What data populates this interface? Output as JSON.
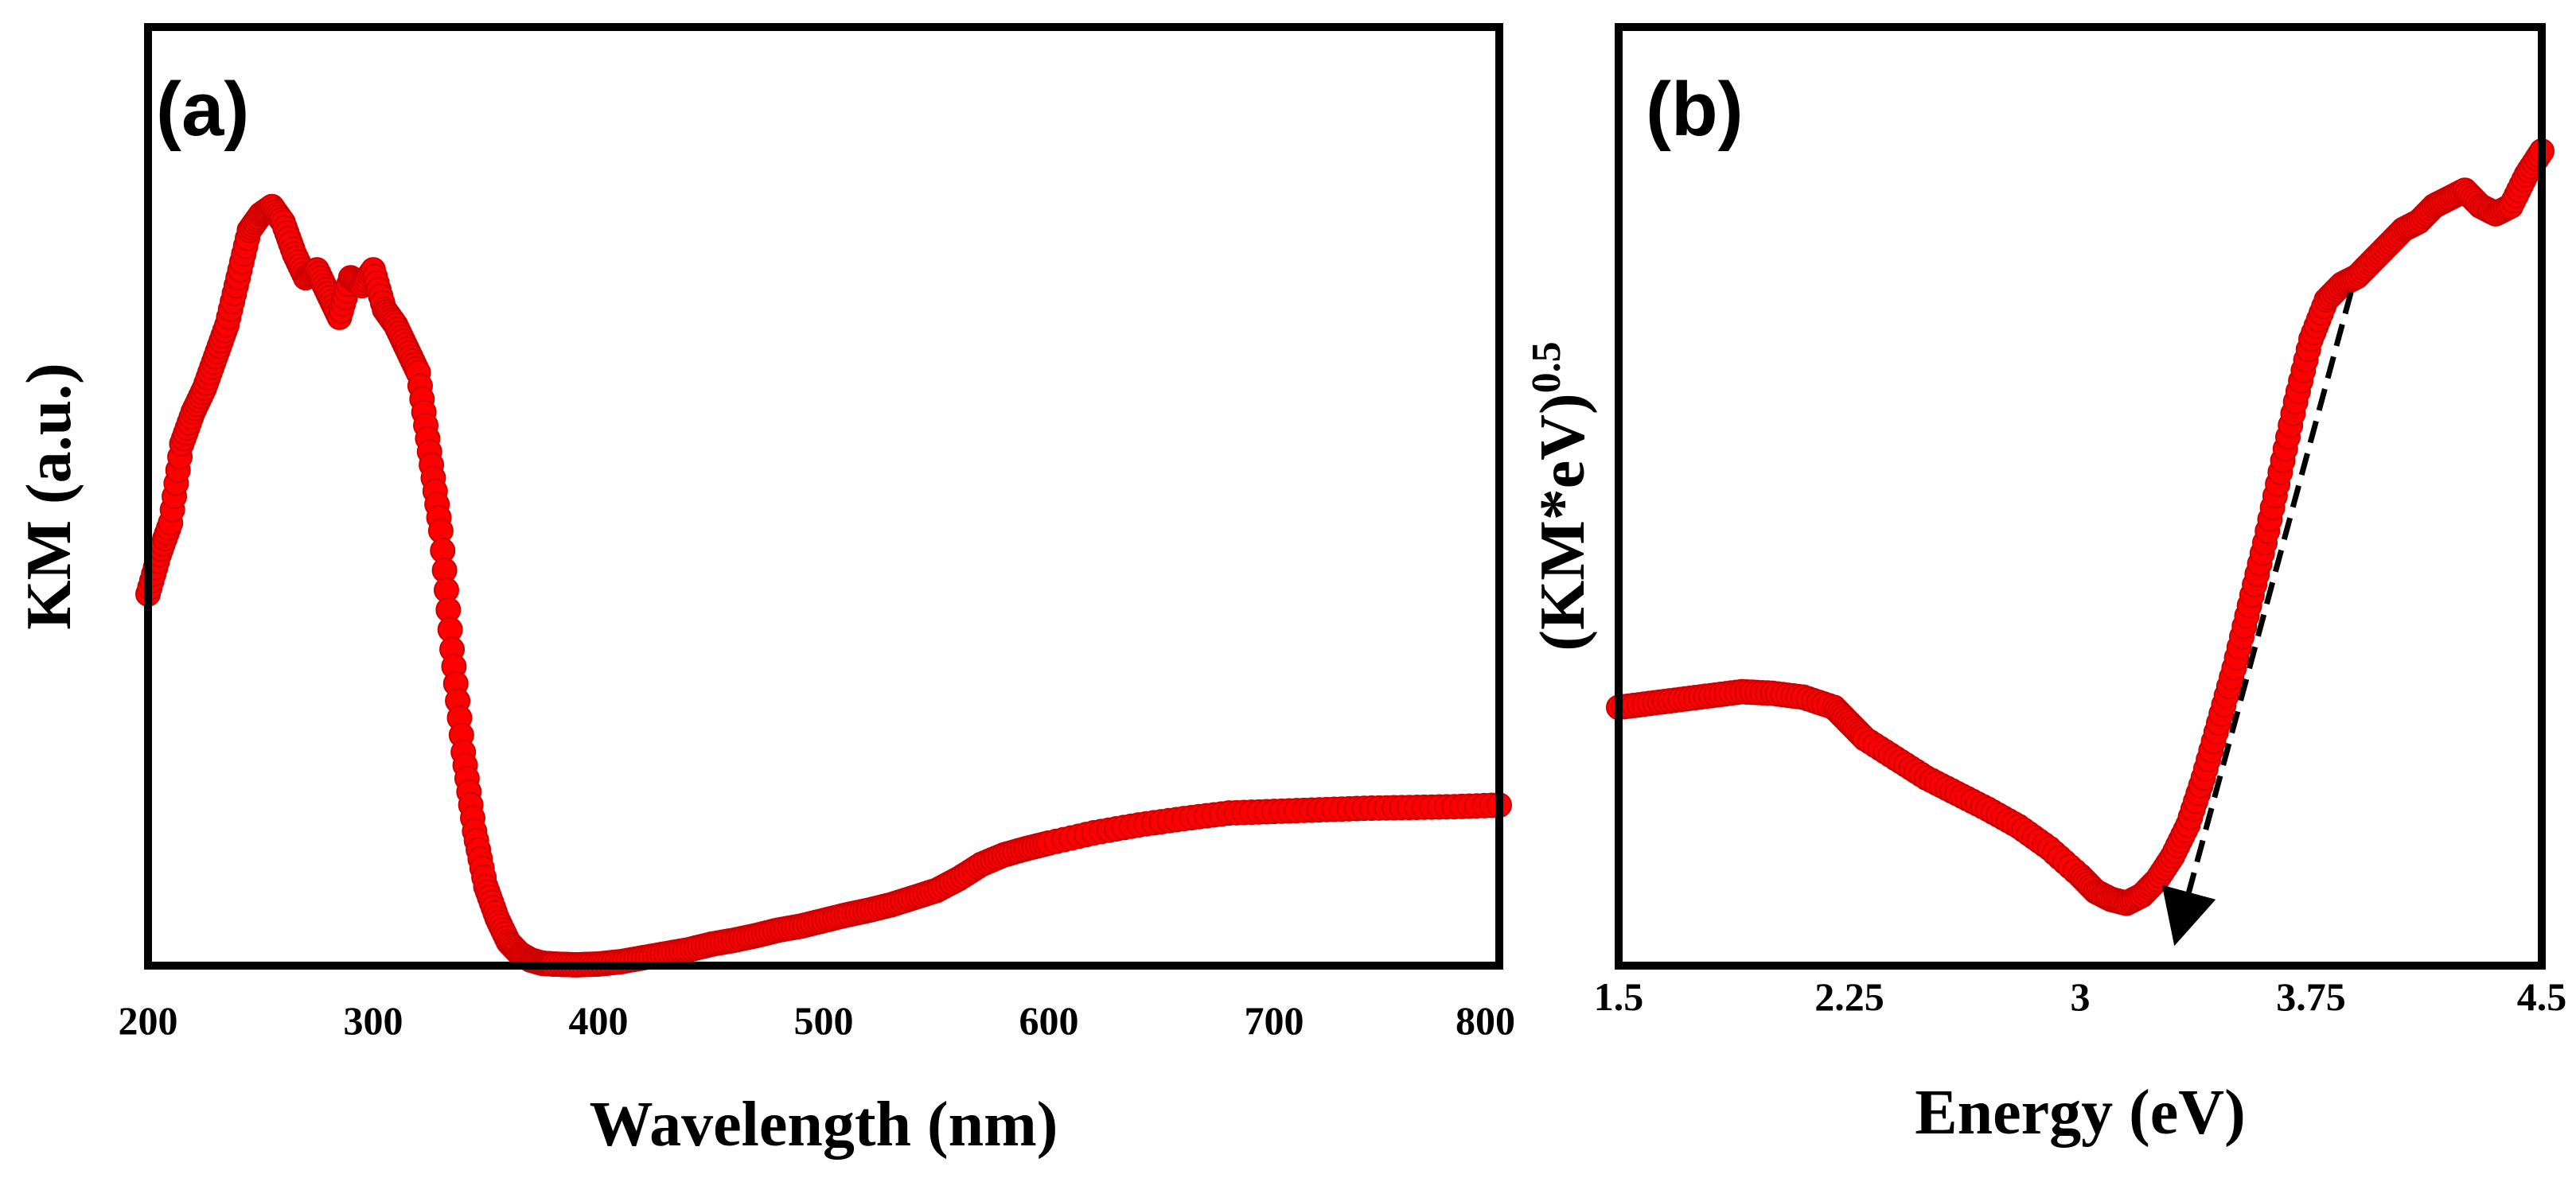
{
  "chart_data": [
    {
      "type": "scatter",
      "panel": "(a)",
      "xlabel": "Wavelength (nm)",
      "ylabel": "KM (a.u.)",
      "xlim": [
        200,
        800
      ],
      "ylim": [
        0,
        1.0
      ],
      "xticks": [
        200,
        300,
        400,
        500,
        600,
        700,
        800
      ],
      "xtick_labels": [
        "200",
        "300",
        "400",
        "500",
        "600",
        "700",
        "800"
      ],
      "marker_color": "#ff0000",
      "series": [
        {
          "name": "KM",
          "x": [
            200,
            205,
            210,
            215,
            220,
            225,
            230,
            235,
            240,
            245,
            250,
            255,
            260,
            265,
            270,
            275,
            280,
            285,
            290,
            295,
            300,
            305,
            310,
            315,
            320,
            325,
            330,
            335,
            340,
            345,
            350,
            355,
            360,
            365,
            370,
            375,
            380,
            390,
            400,
            410,
            420,
            430,
            440,
            450,
            460,
            470,
            480,
            490,
            500,
            510,
            520,
            530,
            540,
            550,
            560,
            570,
            580,
            590,
            600,
            620,
            640,
            660,
            680,
            700,
            720,
            740,
            760,
            780,
            800
          ],
          "y": [
            0.47,
            0.52,
            0.56,
            0.66,
            0.7,
            0.73,
            0.77,
            0.81,
            0.87,
            0.93,
            0.95,
            0.96,
            0.94,
            0.9,
            0.87,
            0.88,
            0.85,
            0.82,
            0.87,
            0.86,
            0.88,
            0.83,
            0.81,
            0.78,
            0.75,
            0.65,
            0.55,
            0.4,
            0.27,
            0.17,
            0.1,
            0.06,
            0.03,
            0.015,
            0.007,
            0.003,
            0.002,
            0.001,
            0.002,
            0.005,
            0.01,
            0.015,
            0.02,
            0.027,
            0.032,
            0.038,
            0.045,
            0.05,
            0.057,
            0.064,
            0.07,
            0.077,
            0.086,
            0.095,
            0.11,
            0.128,
            0.14,
            0.148,
            0.155,
            0.168,
            0.178,
            0.186,
            0.193,
            0.195,
            0.197,
            0.199,
            0.2,
            0.201,
            0.203
          ]
        }
      ]
    },
    {
      "type": "scatter",
      "panel": "(b)",
      "xlabel": "Energy (eV)",
      "ylabel": "(KM*eV)",
      "ylabel_superscript": "0.5",
      "xlim": [
        1.5,
        4.5
      ],
      "ylim": [
        0,
        1.0
      ],
      "xticks": [
        1.5,
        2.25,
        3,
        3.75,
        4.5
      ],
      "xtick_labels": [
        "1.5",
        "2.25",
        "3",
        "3.75",
        "4.5"
      ],
      "marker_color": "#ff0000",
      "series": [
        {
          "name": "(KM*eV)^0.5",
          "x": [
            1.5,
            1.6,
            1.7,
            1.8,
            1.9,
            2.0,
            2.1,
            2.2,
            2.25,
            2.3,
            2.4,
            2.5,
            2.6,
            2.7,
            2.8,
            2.9,
            3.0,
            3.05,
            3.1,
            3.15,
            3.2,
            3.25,
            3.3,
            3.35,
            3.4,
            3.45,
            3.5,
            3.55,
            3.6,
            3.65,
            3.7,
            3.75,
            3.8,
            3.85,
            3.9,
            3.95,
            4.0,
            4.05,
            4.1,
            4.15,
            4.2,
            4.25,
            4.3,
            4.35,
            4.4,
            4.45,
            4.5
          ],
          "y": [
            0.29,
            0.295,
            0.3,
            0.305,
            0.31,
            0.308,
            0.303,
            0.29,
            0.27,
            0.25,
            0.225,
            0.2,
            0.18,
            0.16,
            0.138,
            0.11,
            0.075,
            0.055,
            0.045,
            0.04,
            0.05,
            0.07,
            0.1,
            0.14,
            0.2,
            0.27,
            0.34,
            0.42,
            0.5,
            0.59,
            0.68,
            0.76,
            0.81,
            0.83,
            0.84,
            0.86,
            0.88,
            0.9,
            0.91,
            0.93,
            0.94,
            0.95,
            0.93,
            0.92,
            0.93,
            0.97,
            1.0
          ]
        }
      ],
      "annotation": {
        "type": "dashed-arrow",
        "description": "tangent extrapolation to x-axis",
        "from": [
          3.88,
          0.82
        ],
        "to": [
          3.32,
          0.0
        ]
      }
    }
  ]
}
